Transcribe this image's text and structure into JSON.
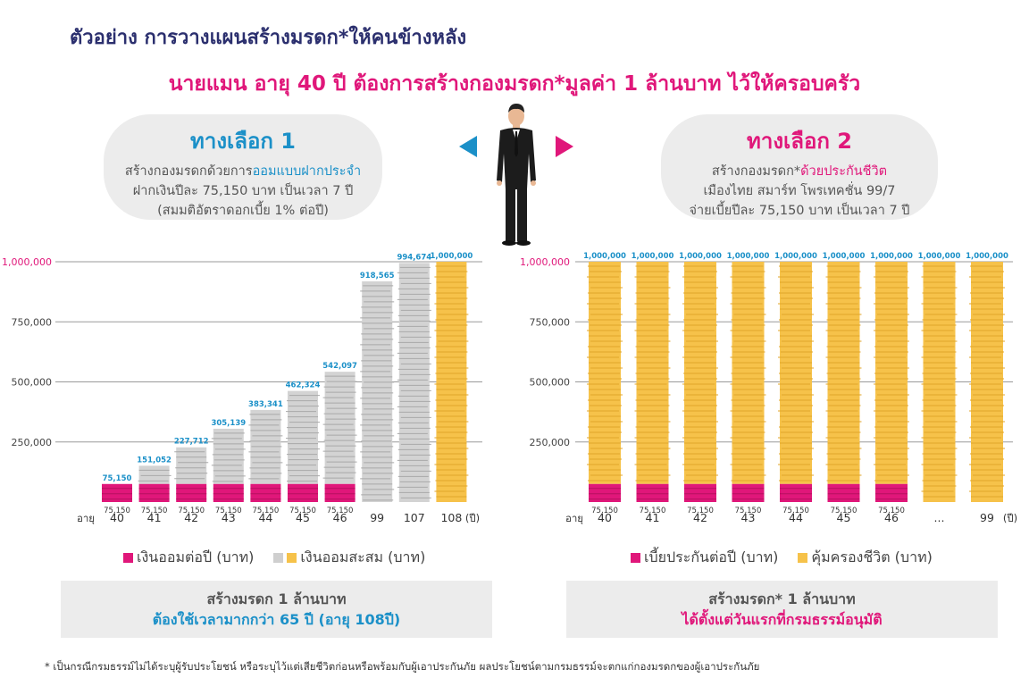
{
  "header": {
    "title": "ตัวอย่าง การวางแผนสร้างมรดก*ให้คนข้างหลัง",
    "subtitle": "นายแมน อายุ 40 ปี ต้องการสร้างกองมรดก*มูลค่า 1 ล้านบาท ไว้ให้ครอบครัว"
  },
  "option1": {
    "title": "ทางเลือก 1",
    "line1_prefix": "สร้างกองมรดกด้วยการ",
    "line1_highlight": "ออมแบบฝากประจำ",
    "line2": "ฝากเงินปีละ 75,150 บาท เป็นเวลา 7 ปี",
    "line3": "(สมมติอัตราดอกเบี้ย 1% ต่อปี)"
  },
  "option2": {
    "title": "ทางเลือก 2",
    "line1_prefix": "สร้างกองมรดก*",
    "line1_highlight": "ด้วยประกันชีวิต",
    "line2": "เมืองไทย สมาร์ท โพรเทคชั่น 99/7",
    "line3": "จ่ายเบี้ยปีละ 75,150 บาท เป็นเวลา 7 ปี"
  },
  "colors": {
    "navy": "#2b2f6e",
    "pink": "#e0177a",
    "blue": "#1b90c8",
    "gold": "#f6c24a",
    "silver": "#cfcfcf"
  },
  "icons": [
    "arrow-left-icon",
    "arrow-right-icon",
    "businessman-figure"
  ],
  "chart_data": [
    {
      "type": "bar",
      "stacked": true,
      "categories": [
        "40",
        "41",
        "42",
        "43",
        "44",
        "45",
        "46",
        "99",
        "107",
        "108"
      ],
      "x_prefix": "อายุ",
      "x_unit": "(ปี)",
      "yticks": [
        250000,
        500000,
        750000,
        1000000
      ],
      "ytick_labels": [
        "250,000",
        "500,000",
        "750,000",
        "1,000,000"
      ],
      "ylim": [
        0,
        1000000
      ],
      "grid": true,
      "series": [
        {
          "name": "เงินออมต่อปี (บาท)",
          "values": [
            75150,
            75150,
            75150,
            75150,
            75150,
            75150,
            75150,
            0,
            0,
            0
          ]
        },
        {
          "name": "เงินออมสะสม (บาท)",
          "values": [
            75150,
            151052,
            227712,
            305139,
            383341,
            462324,
            542097,
            918565,
            994674,
            1000000
          ]
        }
      ],
      "bottom_labels": [
        "75,150",
        "75,150",
        "75,150",
        "75,150",
        "75,150",
        "75,150",
        "75,150",
        "",
        "",
        ""
      ],
      "top_labels": [
        "75,150",
        "151,052",
        "227,712",
        "305,139",
        "383,341",
        "462,324",
        "542,097",
        "918,565",
        "994,674",
        "1,000,000"
      ],
      "legend": [
        {
          "label": "เงินออมต่อปี (บาท)"
        },
        {
          "label": "เงินออมสะสม (บาท)"
        }
      ]
    },
    {
      "type": "bar",
      "stacked": true,
      "categories": [
        "40",
        "41",
        "42",
        "43",
        "44",
        "45",
        "46",
        "...",
        "99"
      ],
      "x_prefix": "อายุ",
      "x_unit": "(ปี)",
      "yticks": [
        250000,
        500000,
        750000,
        1000000
      ],
      "ytick_labels": [
        "250,000",
        "500,000",
        "750,000",
        "1,000,000"
      ],
      "ylim": [
        0,
        1000000
      ],
      "grid": true,
      "series": [
        {
          "name": "เบี้ยประกันต่อปี (บาท)",
          "values": [
            75150,
            75150,
            75150,
            75150,
            75150,
            75150,
            75150,
            0,
            0
          ]
        },
        {
          "name": "คุ้มครองชีวิต (บาท)",
          "values": [
            1000000,
            1000000,
            1000000,
            1000000,
            1000000,
            1000000,
            1000000,
            1000000,
            1000000
          ]
        }
      ],
      "bottom_labels": [
        "75,150",
        "75,150",
        "75,150",
        "75,150",
        "75,150",
        "75,150",
        "75,150",
        "",
        ""
      ],
      "top_labels": [
        "1,000,000",
        "1,000,000",
        "1,000,000",
        "1,000,000",
        "1,000,000",
        "1,000,000",
        "1,000,000",
        "1,000,000",
        "1,000,000"
      ],
      "legend": [
        {
          "label": "เบี้ยประกันต่อปี (บาท)"
        },
        {
          "label": "คุ้มครองชีวิต (บาท)"
        }
      ]
    }
  ],
  "note1": {
    "line1": "สร้างมรดก 1 ล้านบาท",
    "line2": "ต้องใช้เวลามากกว่า 65 ปี (อายุ 108ปี)"
  },
  "note2": {
    "line1": "สร้างมรดก* 1 ล้านบาท",
    "line2": "ได้ตั้งแต่วันแรกที่กรมธรรม์อนุมัติ"
  },
  "footnote": "* เป็นกรณีกรมธรรม์ไม่ได้ระบุผู้รับประโยชน์ หรือระบุไว้แต่เสียชีวิตก่อนหรือพร้อมกับผู้เอาประกันภัย ผลประโยชน์ตามกรมธรรม์จะตกแก่กองมรดกของผู้เอาประกันภัย"
}
